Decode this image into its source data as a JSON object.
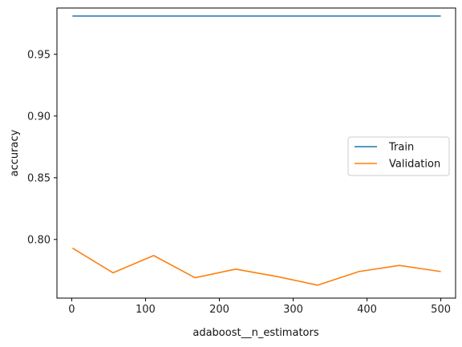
{
  "chart_data": {
    "type": "line",
    "xlabel": "adaboost__n_estimators",
    "ylabel": "accuracy",
    "xlim": [
      -20,
      520
    ],
    "ylim": [
      0.7525,
      0.9875
    ],
    "xticks": [
      0,
      100,
      200,
      300,
      400,
      500
    ],
    "yticks": [
      0.8,
      0.85,
      0.9,
      0.95
    ],
    "xtick_labels": [
      "0",
      "100",
      "200",
      "300",
      "400",
      "500"
    ],
    "ytick_labels": [
      "0.80",
      "0.85",
      "0.90",
      "0.95"
    ],
    "grid": false,
    "legend_position": "center-right",
    "x": [
      1,
      56,
      111,
      167,
      222,
      278,
      333,
      389,
      444,
      500
    ],
    "series": [
      {
        "name": "Train",
        "color": "#1f77b4",
        "values": [
          0.981,
          0.981,
          0.981,
          0.981,
          0.981,
          0.981,
          0.981,
          0.981,
          0.981,
          0.981
        ]
      },
      {
        "name": "Validation",
        "color": "#ff7f0e",
        "values": [
          0.793,
          0.773,
          0.787,
          0.769,
          0.776,
          0.77,
          0.763,
          0.774,
          0.779,
          0.774
        ]
      }
    ]
  }
}
